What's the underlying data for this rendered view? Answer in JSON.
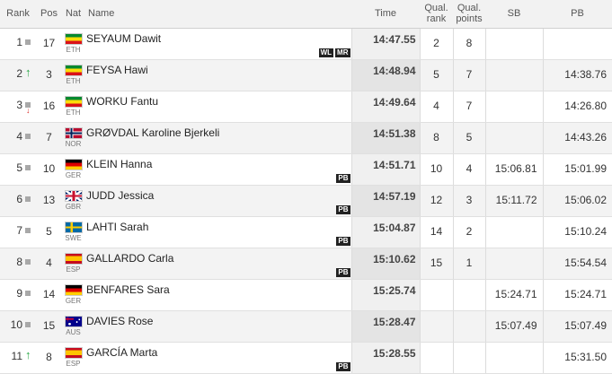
{
  "header": {
    "rank": "Rank",
    "pos": "Pos",
    "nat": "Nat",
    "name": "Name",
    "time": "Time",
    "qual_rank": "Qual. rank",
    "qual_points": "Qual. points",
    "sb": "SB",
    "pb": "PB"
  },
  "rows": [
    {
      "rank": "1",
      "trend": "same",
      "pos": "17",
      "nat": "ETH",
      "flag": "eth",
      "name": "SEYAUM Dawit",
      "badges": [
        "WL",
        "MR"
      ],
      "time": "14:47.55",
      "qual_rank": "2",
      "qual_points": "8",
      "sb": "",
      "pb": ""
    },
    {
      "rank": "2",
      "trend": "up",
      "pos": "3",
      "nat": "ETH",
      "flag": "eth",
      "name": "FEYSA Hawi",
      "badges": [],
      "time": "14:48.94",
      "qual_rank": "5",
      "qual_points": "7",
      "sb": "",
      "pb": "14:38.76"
    },
    {
      "rank": "3",
      "trend": "down",
      "pos": "16",
      "nat": "ETH",
      "flag": "eth",
      "name": "WORKU Fantu",
      "badges": [],
      "time": "14:49.64",
      "qual_rank": "4",
      "qual_points": "7",
      "sb": "",
      "pb": "14:26.80"
    },
    {
      "rank": "4",
      "trend": "same",
      "pos": "7",
      "nat": "NOR",
      "flag": "nor",
      "name": "GRØVDAL Karoline Bjerkeli",
      "badges": [],
      "time": "14:51.38",
      "qual_rank": "8",
      "qual_points": "5",
      "sb": "",
      "pb": "14:43.26"
    },
    {
      "rank": "5",
      "trend": "same",
      "pos": "10",
      "nat": "GER",
      "flag": "ger",
      "name": "KLEIN Hanna",
      "badges": [
        "PB"
      ],
      "time": "14:51.71",
      "qual_rank": "10",
      "qual_points": "4",
      "sb": "15:06.81",
      "pb": "15:01.99"
    },
    {
      "rank": "6",
      "trend": "same",
      "pos": "13",
      "nat": "GBR",
      "flag": "gbr",
      "name": "JUDD Jessica",
      "badges": [
        "PB"
      ],
      "time": "14:57.19",
      "qual_rank": "12",
      "qual_points": "3",
      "sb": "15:11.72",
      "pb": "15:06.02"
    },
    {
      "rank": "7",
      "trend": "same",
      "pos": "5",
      "nat": "SWE",
      "flag": "swe",
      "name": "LAHTI Sarah",
      "badges": [
        "PB"
      ],
      "time": "15:04.87",
      "qual_rank": "14",
      "qual_points": "2",
      "sb": "",
      "pb": "15:10.24"
    },
    {
      "rank": "8",
      "trend": "same",
      "pos": "4",
      "nat": "ESP",
      "flag": "esp",
      "name": "GALLARDO Carla",
      "badges": [
        "PB"
      ],
      "time": "15:10.62",
      "qual_rank": "15",
      "qual_points": "1",
      "sb": "",
      "pb": "15:54.54"
    },
    {
      "rank": "9",
      "trend": "same",
      "pos": "14",
      "nat": "GER",
      "flag": "ger",
      "name": "BENFARES Sara",
      "badges": [],
      "time": "15:25.74",
      "qual_rank": "",
      "qual_points": "",
      "sb": "15:24.71",
      "pb": "15:24.71"
    },
    {
      "rank": "10",
      "trend": "same",
      "pos": "15",
      "nat": "AUS",
      "flag": "aus",
      "name": "DAVIES Rose",
      "badges": [],
      "time": "15:28.47",
      "qual_rank": "",
      "qual_points": "",
      "sb": "15:07.49",
      "pb": "15:07.49"
    },
    {
      "rank": "11",
      "trend": "up",
      "pos": "8",
      "nat": "ESP",
      "flag": "esp",
      "name": "GARCÍA Marta",
      "badges": [
        "PB"
      ],
      "time": "15:28.55",
      "qual_rank": "",
      "qual_points": "",
      "sb": "",
      "pb": "15:31.50"
    }
  ]
}
